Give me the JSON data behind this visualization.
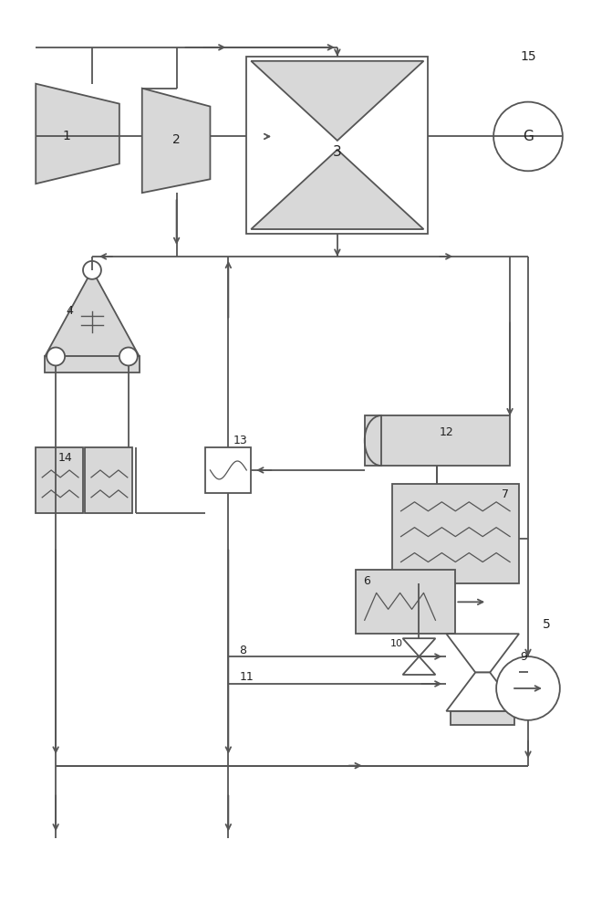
{
  "figsize": [
    6.71,
    10.0
  ],
  "dpi": 100,
  "lc": "#555555",
  "lw": 1.3,
  "fc_gray": "#d8d8d8",
  "fc_white": "#ffffff",
  "label_fs": 9,
  "label_color": "#222222"
}
